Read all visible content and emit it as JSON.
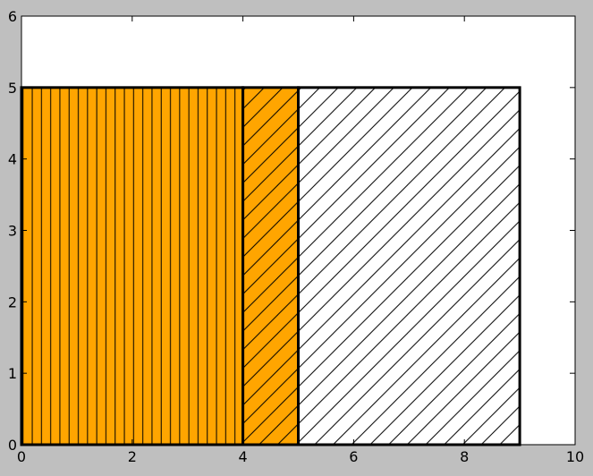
{
  "chart_data": {
    "type": "bar",
    "title": "",
    "xlabel": "",
    "ylabel": "",
    "xlim": [
      0,
      10
    ],
    "ylim": [
      0,
      6
    ],
    "x_ticks": [
      0,
      2,
      4,
      6,
      8,
      10
    ],
    "y_ticks": [
      0,
      1,
      2,
      3,
      4,
      5,
      6
    ],
    "grid": false,
    "legend": "none",
    "rectangles": [
      {
        "x0": 0,
        "x1": 4,
        "height": 5,
        "fill": "#ffa500",
        "hatch": "vertical"
      },
      {
        "x0": 4,
        "x1": 5,
        "height": 5,
        "fill": "#ffa500",
        "hatch": "diagonal"
      },
      {
        "x0": 5,
        "x1": 9,
        "height": 5,
        "fill": "#ffffff",
        "hatch": "diagonal"
      }
    ],
    "colors": {
      "figure_background": "#bfbfbf",
      "axes_background": "#ffffff",
      "edge": "#000000",
      "hatch": "#000000"
    }
  }
}
